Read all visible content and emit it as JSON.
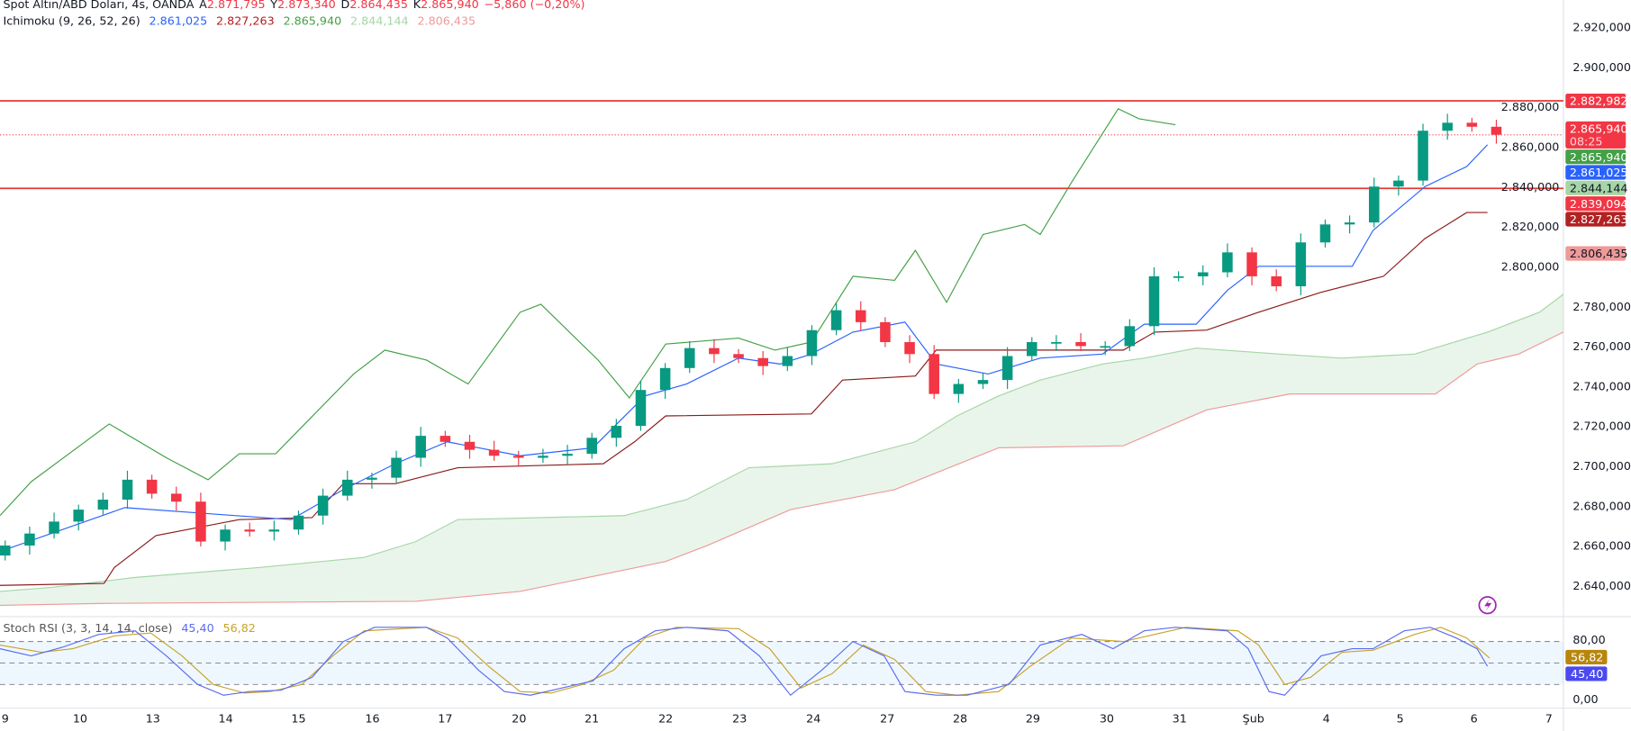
{
  "header": {
    "symbol": "Spot Altın/ABD Doları, 4s, OANDA",
    "open_label": "A",
    "open": "2.871,795",
    "high_label": "Y",
    "high": "2.873,340",
    "low_label": "D",
    "low": "2.864,435",
    "close_label": "K",
    "close": "2.865,940",
    "change": "−5,860 (−0,20%)"
  },
  "ichimoku": {
    "label": "Ichimoku (9, 26, 52, 26)",
    "values": [
      "2.861,025",
      "2.827,263",
      "2.865,940",
      "2.844,144",
      "2.806,435"
    ],
    "colors": [
      "#2962ff",
      "#b71c1c",
      "#43a047",
      "#a5d6a7",
      "#ef9a9a"
    ]
  },
  "stoch": {
    "label": "Stoch RSI (3, 3, 14, 14, close)",
    "k": "45,40",
    "d": "56,82",
    "axis": [
      "80,00",
      "0,00"
    ],
    "k_color": "#5b6cf0",
    "d_color": "#c9a227"
  },
  "price_badges": [
    {
      "text": "2.882,982",
      "color": "#f23645",
      "price": 2882.982
    },
    {
      "text": "2.865,940",
      "sub": "08:25",
      "color": "#f23645",
      "price": 2869
    },
    {
      "text": "2.865,940",
      "color": "#43a047",
      "price": 2862.5
    },
    {
      "text": "2.861,025",
      "color": "#2962ff",
      "price": 2854.5
    },
    {
      "text": "2.844,144",
      "color": "#a5d6a7",
      "dark": true,
      "price": 2844.144
    },
    {
      "text": "2.839,094",
      "color": "#f23645",
      "price": 2836.3
    },
    {
      "text": "2.827,263",
      "color": "#b22222",
      "price": 2827.263
    },
    {
      "text": "2.806,435",
      "color": "#ef9a9a",
      "dark": true,
      "price": 2806.435
    }
  ],
  "colors": {
    "up": "#089981",
    "down": "#f23645",
    "hline": "#e53935",
    "lightning": "#9c27b0"
  },
  "chart_data": {
    "type": "candlestick",
    "title": "Spot Altın/ABD Doları, 4s, OANDA",
    "ylim": [
      2630,
      2925
    ],
    "y_ticks": [
      "2.920,000",
      "2.900,000",
      "2.880,000",
      "2.860,000",
      "2.840,000",
      "2.820,000",
      "2.800,000",
      "2.780,000",
      "2.760,000",
      "2.740,000",
      "2.720,000",
      "2.700,000",
      "2.680,000",
      "2.660,000",
      "2.640,000"
    ],
    "y_tick_values": [
      2920,
      2900,
      2880,
      2860,
      2840,
      2820,
      2800,
      2780,
      2760,
      2740,
      2720,
      2700,
      2680,
      2660,
      2640
    ],
    "x_ticks": [
      "9",
      "10",
      "13",
      "14",
      "15",
      "16",
      "17",
      "20",
      "21",
      "22",
      "23",
      "24",
      "27",
      "28",
      "29",
      "30",
      "31",
      "Şub",
      "4",
      "5",
      "6",
      "7"
    ],
    "first_open": 2655,
    "closes": [
      2660,
      2666,
      2672,
      2678,
      2683,
      2693,
      2686,
      2682,
      2662,
      2668,
      2667,
      2668,
      2675,
      2685,
      2693,
      2694,
      2704,
      2715,
      2712,
      2708,
      2705,
      2704,
      2705,
      2706,
      2714,
      2720,
      2738,
      2749,
      2759,
      2756,
      2754,
      2750,
      2755,
      2768,
      2778,
      2772,
      2762,
      2756,
      2736,
      2741,
      2743,
      2755,
      2762,
      2762,
      2760,
      2760,
      2770,
      2795,
      2795,
      2797,
      2807,
      2795,
      2790,
      2812,
      2821,
      2822,
      2840,
      2843,
      2868,
      2872,
      2870,
      2866
    ],
    "horizontal_lines": [
      2882.982,
      2839.094
    ],
    "last_price_line": 2865.94,
    "tenkan": [
      [
        0,
        2657
      ],
      [
        120,
        2679
      ],
      [
        200,
        2676
      ],
      [
        280,
        2673
      ],
      [
        330,
        2688
      ],
      [
        380,
        2701
      ],
      [
        430,
        2712
      ],
      [
        500,
        2705
      ],
      [
        570,
        2709
      ],
      [
        620,
        2735
      ],
      [
        660,
        2741
      ],
      [
        710,
        2754
      ],
      [
        750,
        2751
      ],
      [
        780,
        2756
      ],
      [
        820,
        2767
      ],
      [
        870,
        2772
      ],
      [
        900,
        2751
      ],
      [
        950,
        2746
      ],
      [
        1000,
        2754
      ],
      [
        1060,
        2756
      ],
      [
        1100,
        2771
      ],
      [
        1150,
        2771
      ],
      [
        1180,
        2788
      ],
      [
        1210,
        2800
      ],
      [
        1300,
        2800
      ],
      [
        1320,
        2818
      ],
      [
        1370,
        2840
      ],
      [
        1410,
        2850
      ],
      [
        1430,
        2861
      ]
    ],
    "kijun": [
      [
        0,
        2640
      ],
      [
        100,
        2641
      ],
      [
        110,
        2649
      ],
      [
        150,
        2665
      ],
      [
        230,
        2673
      ],
      [
        300,
        2674
      ],
      [
        330,
        2691
      ],
      [
        380,
        2691
      ],
      [
        440,
        2699
      ],
      [
        580,
        2701
      ],
      [
        610,
        2712
      ],
      [
        640,
        2725
      ],
      [
        780,
        2726
      ],
      [
        810,
        2743
      ],
      [
        880,
        2745
      ],
      [
        900,
        2758
      ],
      [
        1080,
        2758
      ],
      [
        1110,
        2767
      ],
      [
        1160,
        2768
      ],
      [
        1210,
        2777
      ],
      [
        1270,
        2787
      ],
      [
        1330,
        2795
      ],
      [
        1370,
        2814
      ],
      [
        1410,
        2827
      ],
      [
        1430,
        2827
      ]
    ],
    "chikou": [
      [
        0,
        2675
      ],
      [
        30,
        2692
      ],
      [
        105,
        2721
      ],
      [
        160,
        2704
      ],
      [
        200,
        2693
      ],
      [
        230,
        2706
      ],
      [
        265,
        2706
      ],
      [
        295,
        2722
      ],
      [
        340,
        2746
      ],
      [
        370,
        2758
      ],
      [
        410,
        2753
      ],
      [
        450,
        2741
      ],
      [
        500,
        2777
      ],
      [
        520,
        2781
      ],
      [
        575,
        2753
      ],
      [
        605,
        2734
      ],
      [
        640,
        2761
      ],
      [
        710,
        2764
      ],
      [
        745,
        2758
      ],
      [
        780,
        2762
      ],
      [
        820,
        2795
      ],
      [
        860,
        2793
      ],
      [
        880,
        2808
      ],
      [
        910,
        2782
      ],
      [
        945,
        2816
      ],
      [
        985,
        2821
      ],
      [
        1000,
        2816
      ],
      [
        1030,
        2842
      ],
      [
        1075,
        2879
      ],
      [
        1095,
        2874
      ],
      [
        1130,
        2871
      ]
    ],
    "span_a": [
      [
        0,
        2637
      ],
      [
        50,
        2639
      ],
      [
        130,
        2644
      ],
      [
        250,
        2649
      ],
      [
        350,
        2654
      ],
      [
        400,
        2662
      ],
      [
        440,
        2673
      ],
      [
        600,
        2675
      ],
      [
        660,
        2683
      ],
      [
        720,
        2699
      ],
      [
        800,
        2701
      ],
      [
        880,
        2712
      ],
      [
        920,
        2725
      ],
      [
        960,
        2735
      ],
      [
        1000,
        2743
      ],
      [
        1060,
        2751
      ],
      [
        1100,
        2754
      ],
      [
        1150,
        2759
      ],
      [
        1230,
        2756
      ],
      [
        1290,
        2754
      ],
      [
        1360,
        2756
      ],
      [
        1430,
        2767
      ],
      [
        1480,
        2777
      ],
      [
        1503,
        2786
      ]
    ],
    "span_b": [
      [
        0,
        2630
      ],
      [
        100,
        2631
      ],
      [
        400,
        2632
      ],
      [
        500,
        2637
      ],
      [
        640,
        2652
      ],
      [
        680,
        2660
      ],
      [
        760,
        2678
      ],
      [
        860,
        2688
      ],
      [
        960,
        2709
      ],
      [
        1080,
        2710
      ],
      [
        1160,
        2728
      ],
      [
        1240,
        2736
      ],
      [
        1380,
        2736
      ],
      [
        1420,
        2751
      ],
      [
        1460,
        2756
      ],
      [
        1503,
        2767
      ]
    ],
    "stoch_k": [
      [
        0,
        70
      ],
      [
        30,
        60
      ],
      [
        60,
        72
      ],
      [
        95,
        90
      ],
      [
        130,
        95
      ],
      [
        160,
        60
      ],
      [
        190,
        20
      ],
      [
        215,
        5
      ],
      [
        240,
        10
      ],
      [
        270,
        12
      ],
      [
        300,
        30
      ],
      [
        330,
        80
      ],
      [
        360,
        100
      ],
      [
        410,
        100
      ],
      [
        430,
        85
      ],
      [
        460,
        40
      ],
      [
        485,
        10
      ],
      [
        510,
        5
      ],
      [
        540,
        15
      ],
      [
        570,
        25
      ],
      [
        600,
        70
      ],
      [
        630,
        95
      ],
      [
        660,
        100
      ],
      [
        700,
        95
      ],
      [
        730,
        60
      ],
      [
        760,
        5
      ],
      [
        790,
        40
      ],
      [
        820,
        80
      ],
      [
        850,
        60
      ],
      [
        870,
        10
      ],
      [
        900,
        5
      ],
      [
        930,
        5
      ],
      [
        970,
        20
      ],
      [
        1000,
        75
      ],
      [
        1040,
        90
      ],
      [
        1070,
        70
      ],
      [
        1100,
        95
      ],
      [
        1130,
        100
      ],
      [
        1180,
        95
      ],
      [
        1200,
        70
      ],
      [
        1220,
        10
      ],
      [
        1235,
        5
      ],
      [
        1270,
        60
      ],
      [
        1300,
        70
      ],
      [
        1320,
        70
      ],
      [
        1350,
        95
      ],
      [
        1375,
        100
      ],
      [
        1400,
        85
      ],
      [
        1420,
        70
      ],
      [
        1430,
        45.4
      ]
    ],
    "stoch_d": [
      [
        0,
        75
      ],
      [
        40,
        65
      ],
      [
        70,
        70
      ],
      [
        110,
        88
      ],
      [
        145,
        92
      ],
      [
        175,
        60
      ],
      [
        205,
        20
      ],
      [
        235,
        8
      ],
      [
        260,
        10
      ],
      [
        290,
        20
      ],
      [
        320,
        60
      ],
      [
        350,
        95
      ],
      [
        410,
        100
      ],
      [
        440,
        85
      ],
      [
        470,
        45
      ],
      [
        500,
        10
      ],
      [
        530,
        8
      ],
      [
        560,
        20
      ],
      [
        590,
        40
      ],
      [
        620,
        85
      ],
      [
        650,
        100
      ],
      [
        710,
        98
      ],
      [
        740,
        70
      ],
      [
        770,
        15
      ],
      [
        800,
        35
      ],
      [
        830,
        75
      ],
      [
        860,
        55
      ],
      [
        890,
        10
      ],
      [
        920,
        5
      ],
      [
        960,
        10
      ],
      [
        990,
        45
      ],
      [
        1030,
        85
      ],
      [
        1080,
        80
      ],
      [
        1110,
        90
      ],
      [
        1140,
        100
      ],
      [
        1190,
        95
      ],
      [
        1210,
        75
      ],
      [
        1235,
        20
      ],
      [
        1260,
        30
      ],
      [
        1290,
        65
      ],
      [
        1320,
        68
      ],
      [
        1360,
        90
      ],
      [
        1385,
        100
      ],
      [
        1410,
        85
      ],
      [
        1432,
        56.82
      ]
    ],
    "stoch_levels": [
      80,
      50,
      20
    ]
  }
}
